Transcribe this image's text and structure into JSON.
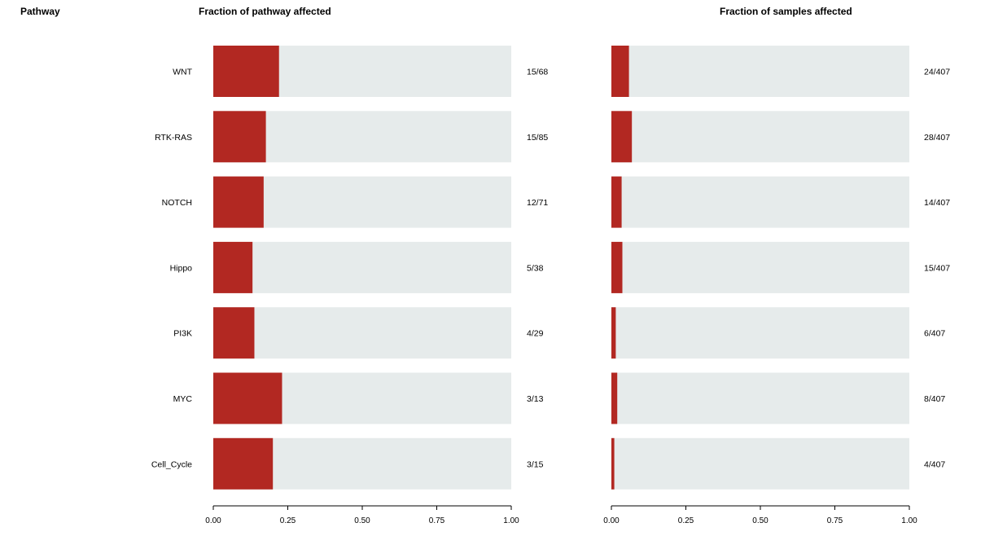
{
  "headers": {
    "pathway": "Pathway",
    "fraction_pathway": "Fraction of pathway affected",
    "fraction_samples": "Fraction of samples affected"
  },
  "colors": {
    "bar_fill": "#b22822",
    "bar_background": "#e6ebeb",
    "axis": "#000000"
  },
  "chart_data": [
    {
      "type": "bar",
      "orientation": "horizontal",
      "title": "Fraction of pathway affected",
      "categories": [
        "WNT",
        "RTK-RAS",
        "NOTCH",
        "Hippo",
        "PI3K",
        "MYC",
        "Cell_Cycle"
      ],
      "values": [
        0.2206,
        0.1765,
        0.169,
        0.1316,
        0.1379,
        0.2308,
        0.2
      ],
      "labels": [
        "15/68",
        "15/85",
        "12/71",
        "5/38",
        "4/29",
        "3/13",
        "3/15"
      ],
      "xlim": [
        0,
        1
      ],
      "ticks": [
        "0.00",
        "0.25",
        "0.50",
        "0.75",
        "1.00"
      ],
      "tick_values": [
        0,
        0.25,
        0.5,
        0.75,
        1
      ],
      "background_bars": true,
      "grid": false
    },
    {
      "type": "bar",
      "orientation": "horizontal",
      "title": "Fraction of samples affected",
      "categories": [
        "WNT",
        "RTK-RAS",
        "NOTCH",
        "Hippo",
        "PI3K",
        "MYC",
        "Cell_Cycle"
      ],
      "values": [
        0.059,
        0.0688,
        0.0344,
        0.0369,
        0.0147,
        0.0197,
        0.0098
      ],
      "labels": [
        "24/407",
        "28/407",
        "14/407",
        "15/407",
        "6/407",
        "8/407",
        "4/407"
      ],
      "xlim": [
        0,
        1
      ],
      "ticks": [
        "0.00",
        "0.25",
        "0.50",
        "0.75",
        "1.00"
      ],
      "tick_values": [
        0,
        0.25,
        0.5,
        0.75,
        1
      ],
      "background_bars": true,
      "grid": false
    }
  ]
}
